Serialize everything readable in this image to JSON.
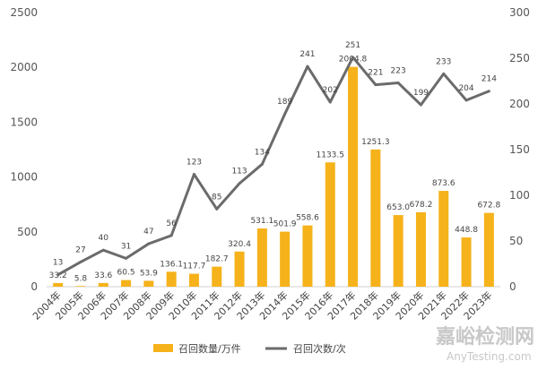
{
  "chart_data": {
    "type": "bar",
    "categories": [
      "2004年",
      "2005年",
      "2006年",
      "2007年",
      "2008年",
      "2009年",
      "2010年",
      "2011年",
      "2012年",
      "2013年",
      "2014年",
      "2015年",
      "2016年",
      "2017年",
      "2018年",
      "2019年",
      "2020年",
      "2021年",
      "2022年",
      "2023年"
    ],
    "series": [
      {
        "name": "召回数量/万件",
        "type": "bar",
        "axis": "left",
        "color": "#F5B21A",
        "values": [
          33.2,
          5.8,
          33.6,
          60.5,
          53.9,
          136.1,
          117.7,
          182.7,
          320.4,
          531.1,
          501.9,
          558.6,
          1133.5,
          2004.8,
          1251.3,
          653.0,
          678.2,
          873.6,
          448.8,
          672.8
        ],
        "labels": [
          "33.2",
          "5.8",
          "33.6",
          "60.5",
          "53.9",
          "136.1",
          "117.7",
          "182.7",
          "320.4",
          "531.1",
          "501.9",
          "558.6",
          "1133.5",
          "2004.8",
          "1251.3",
          "653.0",
          "678.2",
          "873.6",
          "448.8",
          "672.8"
        ]
      },
      {
        "name": "召回次数/次",
        "type": "line",
        "axis": "right",
        "color": "#6B6B6B",
        "values": [
          13,
          27,
          40,
          31,
          47,
          56,
          123,
          85,
          113,
          134,
          189,
          241,
          202,
          251,
          221,
          223,
          199,
          233,
          204,
          214
        ],
        "labels": [
          "13",
          "27",
          "40",
          "31",
          "47",
          "56",
          "123",
          "85",
          "113",
          "134",
          "189",
          "241",
          "202",
          "251",
          "221",
          "223",
          "199",
          "233",
          "204",
          "214"
        ]
      }
    ],
    "y_left": {
      "range": [
        0,
        2500
      ],
      "ticks": [
        "0",
        "500",
        "1000",
        "1500",
        "2000",
        "2500"
      ]
    },
    "y_right": {
      "range": [
        0,
        300
      ],
      "ticks": [
        "0",
        "50",
        "100",
        "150",
        "200",
        "250",
        "300"
      ]
    },
    "grid": false,
    "legend_position": "bottom"
  },
  "watermark": {
    "main": "嘉峪检测网",
    "sub": "AnyTesting.com"
  }
}
